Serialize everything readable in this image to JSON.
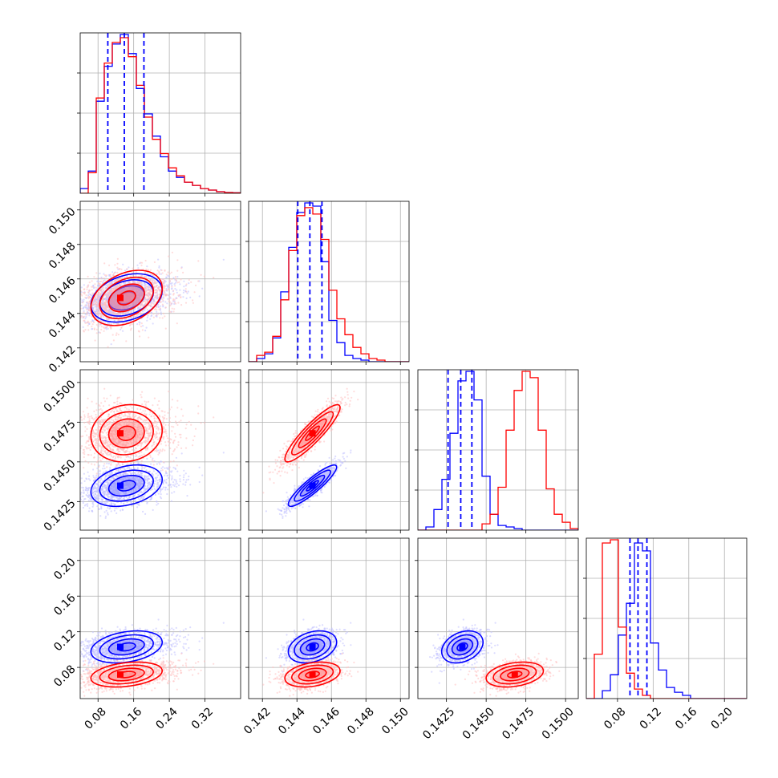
{
  "chart_data": {
    "type": "corner",
    "n_params": 4,
    "title": "",
    "axis_labels": [
      "",
      "",
      "",
      ""
    ],
    "ranges": [
      [
        0.04,
        0.4
      ],
      [
        0.1412,
        0.1505
      ],
      [
        0.1407,
        0.1508
      ],
      [
        0.045,
        0.225
      ]
    ],
    "ticks": [
      [
        "0.08",
        "0.16",
        "0.24",
        "0.32"
      ],
      [
        "0.142",
        "0.144",
        "0.146",
        "0.148",
        "0.150"
      ],
      [
        "0.1425",
        "0.1450",
        "0.1475",
        "0.1500"
      ],
      [
        "0.08",
        "0.12",
        "0.16",
        "0.20"
      ]
    ],
    "grid": true,
    "legend": "none",
    "series": [
      {
        "color": "#0000ff",
        "means": [
          0.13,
          0.1449,
          0.1435,
          0.103
        ],
        "sds": [
          0.04,
          0.0007,
          0.00065,
          0.009
        ],
        "corr": [
          [
            1,
            0.3,
            0.3,
            0.3
          ],
          [
            0.3,
            1,
            0.9,
            0.3
          ],
          [
            0.3,
            0.9,
            1,
            0.3
          ],
          [
            0.3,
            0.3,
            0.3,
            1
          ]
        ],
        "quantile_lines": [
          [
            0.102,
            0.139,
            0.183
          ],
          [
            0.14405,
            0.14475,
            0.14545
          ],
          [
            0.1426,
            0.1434,
            0.1441
          ],
          [
            0.094,
            0.103,
            0.113
          ]
        ]
      },
      {
        "color": "#ff0000",
        "means": [
          0.13,
          0.1449,
          0.1468,
          0.072
        ],
        "sds": [
          0.04,
          0.0008,
          0.0009,
          0.007
        ],
        "corr": [
          [
            1,
            0.35,
            0.1,
            0.3
          ],
          [
            0.35,
            1,
            0.9,
            0.3
          ],
          [
            0.1,
            0.9,
            1,
            0.3
          ],
          [
            0.3,
            0.3,
            0.3,
            1
          ]
        ]
      }
    ],
    "histograms": {
      "0": [
        {
          "series": 0,
          "heights": [
            0.03,
            0.14,
            0.58,
            0.8,
            0.94,
            1.0,
            0.88,
            0.66,
            0.5,
            0.36,
            0.23,
            0.14,
            0.1,
            0.07,
            0.05,
            0.03,
            0.02,
            0.01,
            0.005,
            0.003
          ]
        },
        {
          "series": 1,
          "heights": [
            0.0,
            0.13,
            0.6,
            0.82,
            0.95,
            0.98,
            0.86,
            0.68,
            0.48,
            0.34,
            0.25,
            0.16,
            0.11,
            0.07,
            0.05,
            0.03,
            0.02,
            0.01,
            0.005,
            0.003
          ]
        }
      ],
      "1": [
        {
          "series": 0,
          "heights": [
            0.0,
            0.02,
            0.05,
            0.15,
            0.44,
            0.72,
            0.94,
            1.0,
            0.98,
            0.63,
            0.26,
            0.12,
            0.04,
            0.02,
            0.01,
            0.0,
            0.0,
            0.0,
            0.0,
            0.0
          ]
        },
        {
          "series": 1,
          "heights": [
            0.0,
            0.04,
            0.06,
            0.16,
            0.39,
            0.7,
            0.92,
            0.97,
            0.93,
            0.77,
            0.45,
            0.27,
            0.17,
            0.09,
            0.05,
            0.02,
            0.01,
            0.0,
            0.0,
            0.0
          ]
        }
      ],
      "2": [
        {
          "series": 0,
          "heights": [
            0.0,
            0.02,
            0.13,
            0.32,
            0.61,
            0.94,
            1.0,
            0.82,
            0.34,
            0.1,
            0.03,
            0.02,
            0.01,
            0.0,
            0.0,
            0.0,
            0.0,
            0.0,
            0.0,
            0.0
          ]
        },
        {
          "series": 1,
          "heights": [
            0.0,
            0.0,
            0.0,
            0.0,
            0.0,
            0.0,
            0.0,
            0.0,
            0.04,
            0.1,
            0.27,
            0.63,
            0.88,
            1.0,
            0.96,
            0.63,
            0.26,
            0.1,
            0.05,
            0.01
          ]
        }
      ],
      "3": [
        {
          "series": 0,
          "heights": [
            0.0,
            0.0,
            0.05,
            0.15,
            0.4,
            0.6,
            0.98,
            0.93,
            0.35,
            0.18,
            0.07,
            0.04,
            0.02,
            0.0,
            0.0,
            0.0,
            0.0,
            0.0,
            0.0,
            0.0
          ]
        },
        {
          "series": 1,
          "heights": [
            0.0,
            0.28,
            0.98,
            1.0,
            0.45,
            0.16,
            0.06,
            0.02,
            0.0,
            0.0,
            0.0,
            0.0,
            0.0,
            0.0,
            0.0,
            0.0,
            0.0,
            0.0,
            0.0,
            0.0
          ]
        }
      ]
    }
  }
}
